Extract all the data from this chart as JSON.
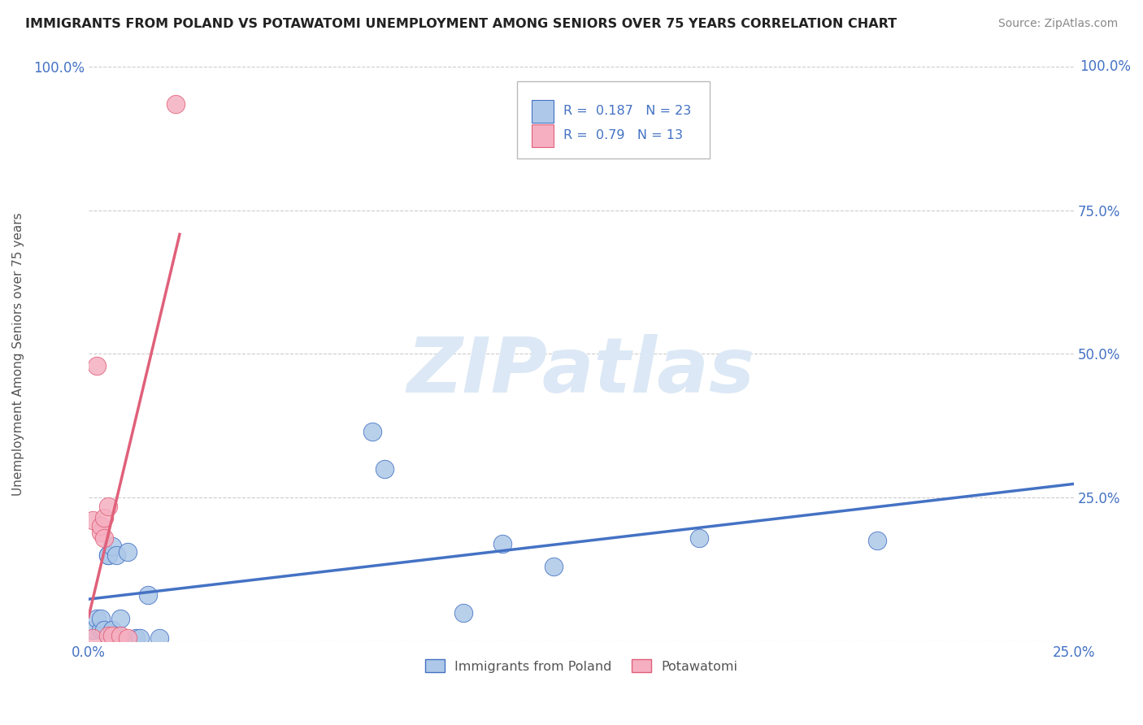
{
  "title": "IMMIGRANTS FROM POLAND VS POTAWATOMI UNEMPLOYMENT AMONG SENIORS OVER 75 YEARS CORRELATION CHART",
  "source": "Source: ZipAtlas.com",
  "ylabel": "Unemployment Among Seniors over 75 years",
  "xlabel": "",
  "xlim": [
    0.0,
    0.25
  ],
  "ylim": [
    0.0,
    1.0
  ],
  "xticks": [
    0.0,
    0.05,
    0.1,
    0.15,
    0.2,
    0.25
  ],
  "xticklabels": [
    "0.0%",
    "",
    "",
    "",
    "",
    "25.0%"
  ],
  "yticks_left": [
    0.0,
    0.25,
    0.5,
    0.75,
    1.0
  ],
  "yticklabels_left": [
    "",
    "",
    "",
    "",
    "100.0%"
  ],
  "yticks_right": [
    0.25,
    0.5,
    0.75
  ],
  "yticklabels_right": [
    "25.0%",
    "50.0%",
    "75.0%"
  ],
  "poland_x": [
    0.001,
    0.002,
    0.003,
    0.003,
    0.004,
    0.005,
    0.005,
    0.006,
    0.006,
    0.007,
    0.008,
    0.01,
    0.012,
    0.013,
    0.015,
    0.018,
    0.072,
    0.075,
    0.095,
    0.105,
    0.118,
    0.155,
    0.2
  ],
  "poland_y": [
    0.02,
    0.04,
    0.02,
    0.04,
    0.02,
    0.15,
    0.15,
    0.165,
    0.02,
    0.15,
    0.04,
    0.155,
    0.005,
    0.005,
    0.08,
    0.005,
    0.365,
    0.3,
    0.05,
    0.17,
    0.13,
    0.18,
    0.175
  ],
  "potawatomi_x": [
    0.001,
    0.001,
    0.002,
    0.003,
    0.003,
    0.004,
    0.004,
    0.005,
    0.005,
    0.006,
    0.008,
    0.01,
    0.022
  ],
  "potawatomi_y": [
    0.005,
    0.21,
    0.48,
    0.19,
    0.2,
    0.215,
    0.18,
    0.235,
    0.01,
    0.01,
    0.01,
    0.005,
    0.935
  ],
  "poland_R": 0.187,
  "poland_N": 23,
  "potawatomi_R": 0.79,
  "potawatomi_N": 13,
  "poland_color": "#adc8e8",
  "potawatomi_color": "#f5afc0",
  "poland_line_color": "#4472c4",
  "potawatomi_line_color": "#e0607a",
  "watermark_zip": "ZIP",
  "watermark_atlas": "atlas",
  "background_color": "#ffffff",
  "grid_color": "#cccccc"
}
